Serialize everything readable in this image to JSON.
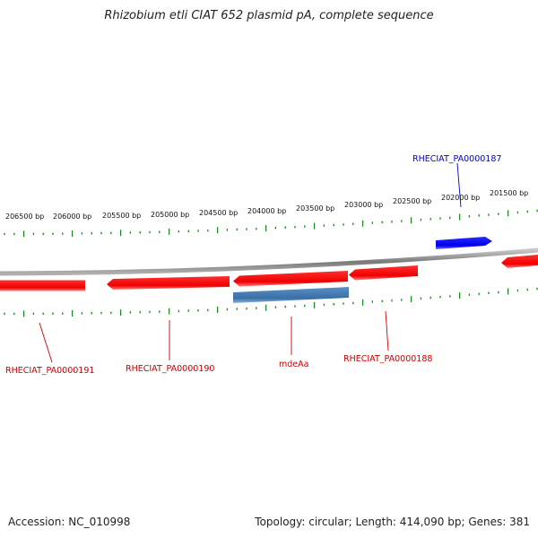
{
  "title": "Rhizobium etli CIAT 652 plasmid pA, complete sequence",
  "colors": {
    "backbone": "#7a7a7a",
    "gene_red": "#ff1a1a",
    "gene_blue": "#1a1aff",
    "gene_steel": "#4a7fb5",
    "tick": "#1a8a1a",
    "label_red": "#cc0000",
    "label_blue": "#0000cc"
  },
  "ruler": {
    "labels": [
      "206500 bp",
      "206000 bp",
      "205500 bp",
      "205000 bp",
      "204500 bp",
      "204000 bp",
      "203500 bp",
      "203000 bp",
      "202500 bp",
      "202000 bp",
      "201500 bp"
    ]
  },
  "features": [
    {
      "name": "RHECIAT_PA0000191",
      "color": "red"
    },
    {
      "name": "RHECIAT_PA0000190",
      "color": "red"
    },
    {
      "name": "mdeAa",
      "color": "steel"
    },
    {
      "name": "RHECIAT_PA0000188",
      "color": "red"
    },
    {
      "name": "RHECIAT_PA0000187",
      "color": "blue"
    }
  ],
  "footer": {
    "accession": "Accession: NC_010998",
    "summary": "Topology: circular; Length: 414,090 bp; Genes: 381"
  }
}
